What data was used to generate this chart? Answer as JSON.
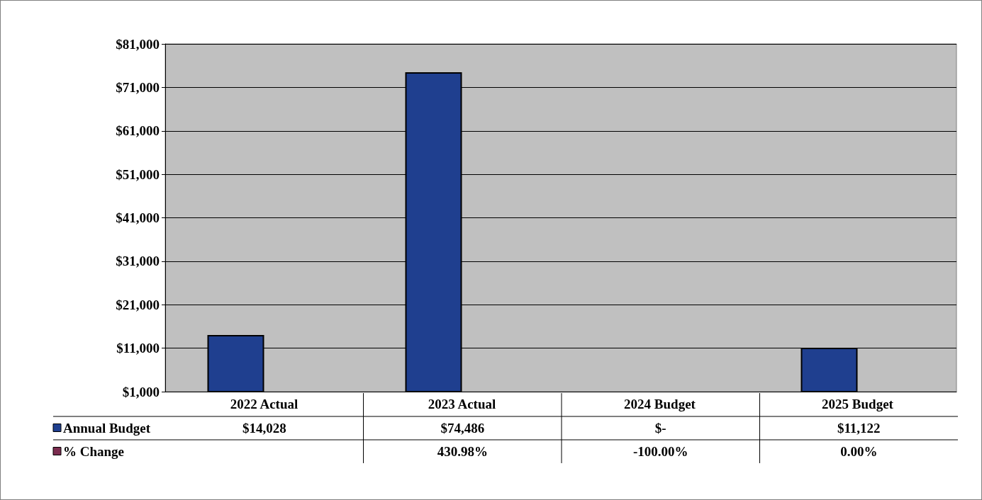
{
  "chart_data": {
    "type": "bar",
    "categories": [
      "2022 Actual",
      "2023 Actual",
      "2024 Budget",
      "2025 Budget"
    ],
    "series": [
      {
        "name": "Annual Budget",
        "color": "#1f3f8f",
        "values": [
          14028,
          74486,
          null,
          11122
        ],
        "value_labels": [
          "$14,028",
          "$74,486",
          "$-",
          "$11,122"
        ]
      },
      {
        "name": "% Change",
        "color": "#7b2c4f",
        "values": [
          null,
          null,
          null,
          null
        ],
        "value_labels": [
          null,
          "430.98%",
          "-100.00%",
          "0.00%"
        ]
      }
    ],
    "ylim": [
      1000,
      81000
    ],
    "yticks": [
      {
        "value": 1000,
        "label": "$1,000"
      },
      {
        "value": 11000,
        "label": "$11,000"
      },
      {
        "value": 21000,
        "label": "$21,000"
      },
      {
        "value": 31000,
        "label": "$31,000"
      },
      {
        "value": 41000,
        "label": "$41,000"
      },
      {
        "value": 51000,
        "label": "$51,000"
      },
      {
        "value": 61000,
        "label": "$61,000"
      },
      {
        "value": 71000,
        "label": "$71,000"
      },
      {
        "value": 81000,
        "label": "$81,000"
      }
    ],
    "grid": "y",
    "legend": "bottom"
  }
}
